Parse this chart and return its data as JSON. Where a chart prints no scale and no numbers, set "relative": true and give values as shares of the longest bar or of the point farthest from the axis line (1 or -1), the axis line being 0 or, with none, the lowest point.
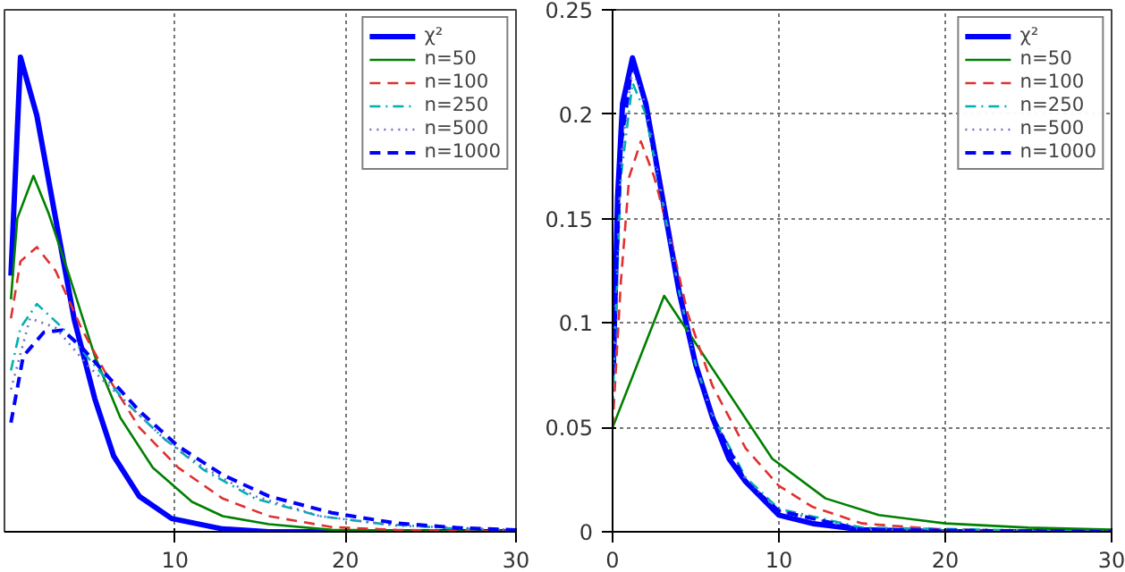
{
  "chart_data": [
    {
      "type": "line",
      "relative": true,
      "xlim": [
        0,
        30
      ],
      "xticks": [
        10,
        20,
        30
      ],
      "tick_labels": "x",
      "grid": "x",
      "legend": "top right",
      "series": [
        {
          "name": "χ²",
          "color": "#0000ff",
          "line_style": "solid",
          "x": [
            0.38,
            0.94,
            1.9,
            3.0,
            4.1,
            5.3,
            6.4,
            7.9,
            9.8,
            12.8,
            15.5,
            30
          ],
          "values": [
            0.54,
            1.0,
            0.877,
            0.66,
            0.446,
            0.28,
            0.16,
            0.075,
            0.028,
            0.006,
            0,
            0
          ]
        },
        {
          "name": "n=50",
          "color": "#008000",
          "line_style": "solid",
          "x": [
            0.38,
            0.75,
            1.7,
            2.6,
            3.8,
            5.3,
            6.8,
            8.7,
            11,
            12.8,
            15.5,
            19.2,
            30
          ],
          "values": [
            0.49,
            0.66,
            0.75,
            0.67,
            0.54,
            0.37,
            0.24,
            0.135,
            0.063,
            0.033,
            0.016,
            0.004,
            0
          ]
        },
        {
          "name": "n=100",
          "color": "#e03030",
          "line_style": "dashed",
          "x": [
            0.38,
            0.94,
            1.9,
            3,
            4.5,
            6,
            7.9,
            10.2,
            12.8,
            15.5,
            19.2,
            23,
            30
          ],
          "values": [
            0.45,
            0.57,
            0.6,
            0.55,
            0.43,
            0.33,
            0.22,
            0.135,
            0.07,
            0.033,
            0.01,
            0.004,
            0
          ]
        },
        {
          "name": "n=250",
          "color": "#00b0b0",
          "line_style": "dashdot",
          "x": [
            0.38,
            0.94,
            1.9,
            3.4,
            5.3,
            7.2,
            9.4,
            11.7,
            14.7,
            18.5,
            22.3,
            26.8,
            30
          ],
          "values": [
            0.34,
            0.43,
            0.48,
            0.43,
            0.35,
            0.27,
            0.195,
            0.13,
            0.07,
            0.033,
            0.016,
            0.006,
            0.004
          ]
        },
        {
          "name": "n=500",
          "color": "#7070c0",
          "line_style": "dotted",
          "x": [
            0.38,
            1.5,
            3,
            4.9,
            7.2,
            9.4,
            11.7,
            14.7,
            18.5,
            23,
            30
          ],
          "values": [
            0.3,
            0.45,
            0.43,
            0.35,
            0.27,
            0.195,
            0.135,
            0.075,
            0.033,
            0.013,
            0.004
          ]
        },
        {
          "name": "n=1000",
          "color": "#0000ff",
          "line_style": "dashed",
          "x": [
            0.38,
            1.1,
            2.3,
            3.4,
            4.5,
            6,
            7.9,
            10.2,
            12.8,
            15.5,
            19.2,
            23,
            26.8,
            30
          ],
          "values": [
            0.23,
            0.37,
            0.42,
            0.425,
            0.39,
            0.33,
            0.255,
            0.18,
            0.12,
            0.075,
            0.04,
            0.018,
            0.008,
            0.004
          ]
        }
      ]
    },
    {
      "type": "line",
      "xlim": [
        0,
        30
      ],
      "ylim": [
        0,
        0.25
      ],
      "xticks": [
        0,
        10,
        20,
        30
      ],
      "yticks": [
        0,
        0.05,
        0.1,
        0.15,
        0.2,
        0.25
      ],
      "grid": true,
      "legend": "top right",
      "series": [
        {
          "name": "χ²",
          "color": "#0000ff",
          "line_style": "solid",
          "x": [
            0.05,
            0.3,
            0.6,
            1.2,
            2,
            3,
            4,
            5,
            6,
            7,
            8,
            10,
            12,
            15,
            20,
            30
          ],
          "values": [
            0.08,
            0.16,
            0.205,
            0.227,
            0.205,
            0.16,
            0.115,
            0.08,
            0.055,
            0.035,
            0.024,
            0.008,
            0.004,
            0.001,
            0,
            0
          ]
        },
        {
          "name": "n=50",
          "color": "#008000",
          "line_style": "solid",
          "x": [
            0,
            3.1,
            9.6,
            12.8,
            16,
            20,
            25,
            30
          ],
          "values": [
            0.05,
            0.113,
            0.035,
            0.016,
            0.008,
            0.004,
            0.002,
            0.001
          ]
        },
        {
          "name": "n=100",
          "color": "#e03030",
          "line_style": "dashed",
          "x": [
            0,
            0.5,
            1,
            1.7,
            2.5,
            3.5,
            4.5,
            6,
            8,
            10,
            12,
            15,
            20,
            30
          ],
          "values": [
            0.05,
            0.12,
            0.17,
            0.187,
            0.17,
            0.14,
            0.105,
            0.07,
            0.04,
            0.022,
            0.012,
            0.004,
            0.001,
            0
          ]
        },
        {
          "name": "n=250",
          "color": "#00b0b0",
          "line_style": "dashdot",
          "x": [
            0,
            0.5,
            1.2,
            2,
            3,
            4,
            5,
            6,
            8,
            10,
            15,
            30
          ],
          "values": [
            0.06,
            0.17,
            0.215,
            0.2,
            0.158,
            0.115,
            0.08,
            0.056,
            0.026,
            0.011,
            0.002,
            0
          ]
        },
        {
          "name": "n=500",
          "color": "#7070c0",
          "line_style": "dotted",
          "x": [
            0,
            0.5,
            1.2,
            2,
            3,
            4,
            5,
            6,
            8,
            10,
            15,
            30
          ],
          "values": [
            0.07,
            0.18,
            0.222,
            0.204,
            0.16,
            0.115,
            0.08,
            0.055,
            0.025,
            0.01,
            0.001,
            0
          ]
        },
        {
          "name": "n=1000",
          "color": "#0000ff",
          "line_style": "dashed",
          "x": [
            0,
            0.5,
            1.2,
            2,
            3,
            4,
            5,
            6,
            8,
            10,
            15,
            30
          ],
          "values": [
            0.075,
            0.185,
            0.225,
            0.205,
            0.16,
            0.115,
            0.08,
            0.055,
            0.024,
            0.01,
            0.001,
            0
          ]
        }
      ]
    }
  ]
}
